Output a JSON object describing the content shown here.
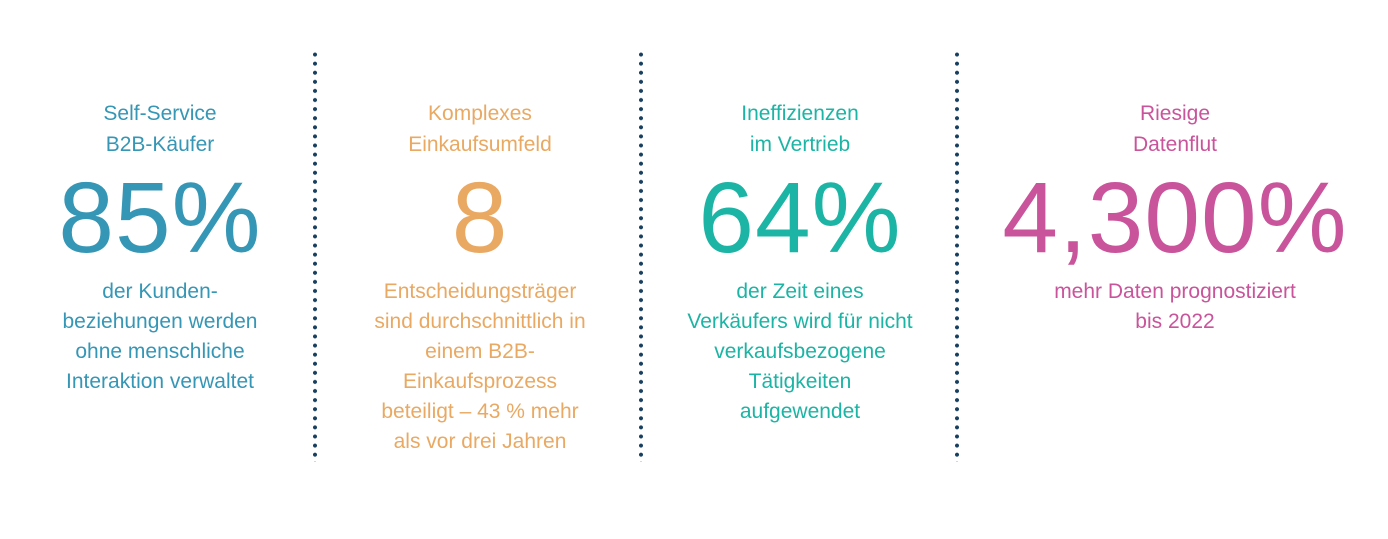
{
  "colors": {
    "stat1": "#3596b5",
    "stat2": "#e9a962",
    "stat3": "#1cb4a4",
    "stat4": "#c9549b",
    "divider": "#173f5f"
  },
  "stats": [
    {
      "heading": [
        "Self-Service",
        "B2B-Käufer"
      ],
      "value": "85%",
      "description": [
        "der Kunden-",
        "beziehungen werden",
        "ohne menschliche",
        "Interaktion verwaltet"
      ]
    },
    {
      "heading": [
        "Komplexes",
        "Einkaufsumfeld"
      ],
      "value": "8",
      "description": [
        "Entscheidungsträger",
        "sind durchschnittlich in",
        "einem B2B-",
        "Einkaufsprozess",
        "beteiligt – 43 % mehr",
        "als vor drei Jahren"
      ]
    },
    {
      "heading": [
        "Ineffizienzen",
        "im Vertrieb"
      ],
      "value": "64%",
      "description": [
        "der Zeit eines",
        "Verkäufers wird für nicht",
        "verkaufsbezogene",
        "Tätigkeiten",
        "aufgewendet"
      ]
    },
    {
      "heading": [
        "Riesige",
        "Datenflut"
      ],
      "value": "4,300%",
      "description": [
        "mehr Daten prognostiziert",
        "bis 2022"
      ]
    }
  ]
}
